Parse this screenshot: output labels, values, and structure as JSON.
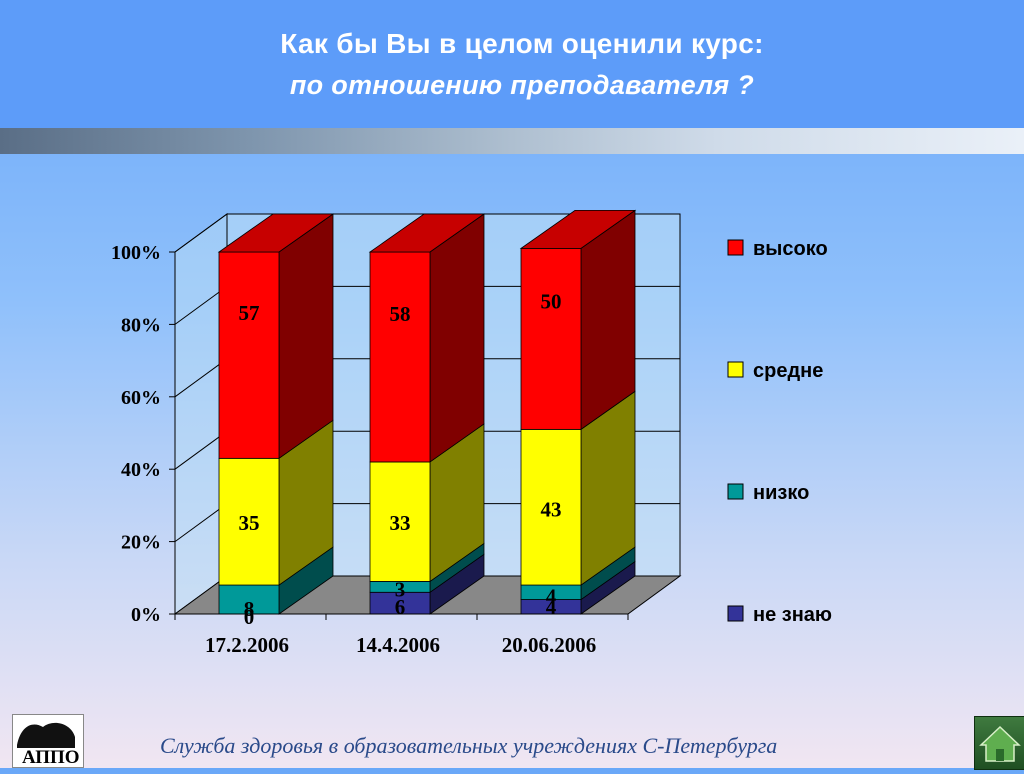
{
  "slide": {
    "title_line1": "Как бы Вы в целом оценили курс:",
    "title_line2": "по отношению преподавателя ?",
    "footer": "Служба здоровья в образовательных учреждениях С-Петербурга",
    "logo_text": "АППО"
  },
  "colors": {
    "high": "#ff0000",
    "medium": "#ffff00",
    "low": "#009999",
    "dont_know": "#333399",
    "floor": "#888888",
    "wall": "#bfe0f5"
  },
  "icons": {
    "home": "home-icon",
    "logo": "logo-icon"
  },
  "chart_data": {
    "type": "bar",
    "stacked": true,
    "three_d": true,
    "categories": [
      "17.2.2006",
      "14.4.2006",
      "20.06.2006"
    ],
    "series": [
      {
        "name": "не знаю",
        "key": "dont_know",
        "values": [
          0,
          6,
          4
        ]
      },
      {
        "name": "низко",
        "key": "low",
        "values": [
          8,
          3,
          4
        ]
      },
      {
        "name": "средне",
        "key": "medium",
        "values": [
          35,
          33,
          43
        ]
      },
      {
        "name": "высоко",
        "key": "high",
        "values": [
          57,
          58,
          50
        ]
      }
    ],
    "y_ticks": [
      "0%",
      "20%",
      "40%",
      "60%",
      "80%",
      "100%"
    ],
    "ylim": [
      0,
      100
    ],
    "legend_position": "right",
    "grid": true
  }
}
